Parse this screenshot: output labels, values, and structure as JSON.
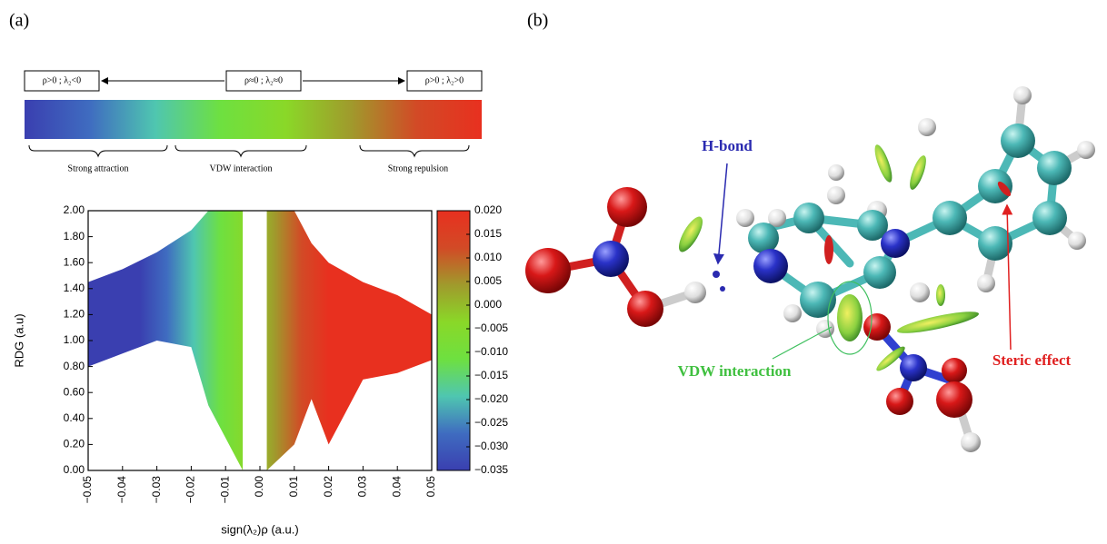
{
  "panel_labels": [
    "(a)",
    "(b)"
  ],
  "legend_bar": {
    "boxes": [
      "ρ>0 ; λ₂<0",
      "ρ≈0 ; λ₂≈0",
      "ρ>0 ; λ₂>0"
    ],
    "regions": [
      "Strong attraction",
      "VDW interaction",
      "Strong repulsion"
    ]
  },
  "chart_data": {
    "type": "band",
    "y_label": "RDG (a.u)",
    "x_label": "sign(λ₂)ρ (a.u.)",
    "x": [
      -0.05,
      -0.04,
      -0.03,
      -0.02,
      -0.015,
      -0.01,
      -0.005,
      -0.003,
      0.0,
      0.002,
      0.006,
      0.01,
      0.015,
      0.02,
      0.03,
      0.04,
      0.05
    ],
    "upper": [
      1.45,
      1.55,
      1.68,
      1.85,
      2.0,
      2.0,
      2.0,
      null,
      null,
      2.0,
      2.0,
      2.0,
      1.75,
      1.6,
      1.45,
      1.35,
      1.2
    ],
    "lower": [
      0.8,
      0.9,
      1.0,
      0.95,
      0.5,
      0.25,
      0.0,
      null,
      null,
      0.0,
      0.1,
      0.2,
      0.55,
      0.2,
      0.7,
      0.75,
      0.85
    ],
    "xlim": [
      -0.05,
      0.05
    ],
    "ylim": [
      0,
      2
    ],
    "xticks": [
      {
        "value": -0.05,
        "label": "−0.05"
      },
      {
        "value": -0.04,
        "label": "−0.04"
      },
      {
        "value": -0.03,
        "label": "−0.03"
      },
      {
        "value": -0.02,
        "label": "−0.02"
      },
      {
        "value": -0.01,
        "label": "−0.01"
      },
      {
        "value": 0,
        "label": "0.00"
      },
      {
        "value": 0.01,
        "label": "0.01"
      },
      {
        "value": 0.02,
        "label": "0.02"
      },
      {
        "value": 0.03,
        "label": "0.03"
      },
      {
        "value": 0.04,
        "label": "0.04"
      },
      {
        "value": 0.05,
        "label": "0.05"
      }
    ],
    "yticks": [
      {
        "value": 0,
        "label": "0.00"
      },
      {
        "value": 0.2,
        "label": "0.20"
      },
      {
        "value": 0.4,
        "label": "0.40"
      },
      {
        "value": 0.6,
        "label": "0.60"
      },
      {
        "value": 0.8,
        "label": "0.80"
      },
      {
        "value": 1,
        "label": "1.00"
      },
      {
        "value": 1.2,
        "label": "1.20"
      },
      {
        "value": 1.4,
        "label": "1.40"
      },
      {
        "value": 1.6,
        "label": "1.60"
      },
      {
        "value": 1.8,
        "label": "1.80"
      },
      {
        "value": 2,
        "label": "2.00"
      }
    ],
    "zlim": [
      -0.035,
      0.02
    ],
    "zticks": [
      {
        "value": 0.02,
        "label": "0.020"
      },
      {
        "value": 0.015,
        "label": "0.015"
      },
      {
        "value": 0.01,
        "label": "0.010"
      },
      {
        "value": 0.005,
        "label": "0.005"
      },
      {
        "value": 0,
        "label": "0.000"
      },
      {
        "value": -0.005,
        "label": "−0.005"
      },
      {
        "value": -0.01,
        "label": "−0.010"
      },
      {
        "value": -0.015,
        "label": "−0.015"
      },
      {
        "value": -0.02,
        "label": "−0.020"
      },
      {
        "value": -0.025,
        "label": "−0.025"
      },
      {
        "value": -0.03,
        "label": "−0.030"
      },
      {
        "value": -0.035,
        "label": "−0.035"
      }
    ],
    "colormap": [
      "#3a3fb0",
      "#3f6cc0",
      "#4fc6b0",
      "#6ee040",
      "#8ad828",
      "#a09a2c",
      "#d24a26",
      "#e8301f"
    ]
  },
  "molecule": {
    "labels": [
      "H-bond",
      "VDW interaction",
      "Steric effect"
    ]
  }
}
